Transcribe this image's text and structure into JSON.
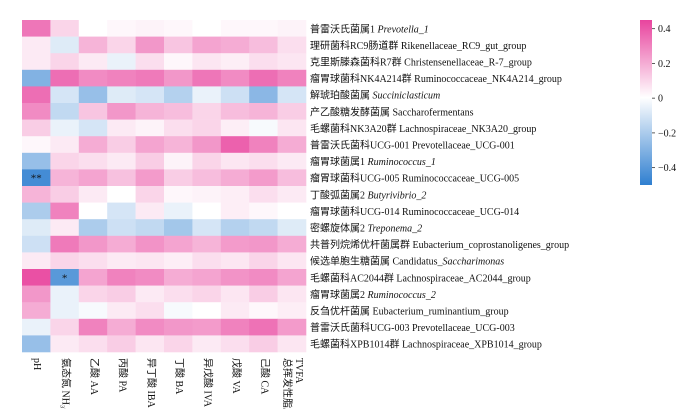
{
  "chart_data": {
    "type": "heatmap",
    "title": "",
    "rows": [
      {
        "zh": "普雷沃氏菌属1 ",
        "en": "Prevotella_1",
        "italic": true
      },
      {
        "zh": "理研菌科RC9肠道群 ",
        "en": "Rikenellaceae_RC9_gut_group",
        "italic": false
      },
      {
        "zh": "克里斯滕森菌科R7群 ",
        "en": "Christensenellaceae_R-7_group",
        "italic": false
      },
      {
        "zh": "瘤胃球菌科NK4A214群 ",
        "en": "Ruminococcaceae_NK4A214_group",
        "italic": false
      },
      {
        "zh": "解琥珀酸菌属 ",
        "en": "Succiniclasticum",
        "italic": true
      },
      {
        "zh": "产乙酸糖发酵菌属 ",
        "en": "Saccharofermentans",
        "italic": false
      },
      {
        "zh": "毛螺菌科NK3A20群 ",
        "en": "Lachnospiraceae_NK3A20_group",
        "italic": false
      },
      {
        "zh": "普雷沃氏菌科UCG-001 ",
        "en": "Prevotellaceae_UCG-001",
        "italic": false
      },
      {
        "zh": "瘤胃球菌属1 ",
        "en": "Ruminococcus_1",
        "italic": true
      },
      {
        "zh": "瘤胃球菌科UCG-005 ",
        "en": "Ruminococcaceae_UCG-005",
        "italic": false
      },
      {
        "zh": "丁酸弧菌属2 ",
        "en": "Butyrivibrio_2",
        "italic": true
      },
      {
        "zh": "瘤胃球菌科UCG-014 ",
        "en": "Ruminococcaceae_UCG-014",
        "italic": false
      },
      {
        "zh": "密螺旋体属2 ",
        "en": "Treponema_2",
        "italic": true
      },
      {
        "zh": "共普列烷烯优杆菌属群 ",
        "en": "Eubacterium_coprostanoligenes_group",
        "italic": false
      },
      {
        "zh": "候选单胞生糖菌属 ",
        "en": "Candidatus_Saccharimonas",
        "italic": false,
        "italic_tail": "Saccharimonas",
        "head": "Candidatus_"
      },
      {
        "zh": "毛螺菌科AC2044群 ",
        "en": "Lachnospiraceae_AC2044_group",
        "italic": false
      },
      {
        "zh": "瘤胃球菌属2 ",
        "en": "Ruminococcus_2",
        "italic": true
      },
      {
        "zh": "反刍优杆菌属 ",
        "en": "Eubacterium_ruminantium_group",
        "italic": false
      },
      {
        "zh": "普雷沃氏菌科UCG-003 ",
        "en": "Prevotellaceae_UCG-003",
        "italic": false
      },
      {
        "zh": "毛螺菌科XPB1014群 ",
        "en": "Lachnospiraceae_XPB1014_group",
        "italic": false
      }
    ],
    "columns": [
      {
        "lines": [
          "pH"
        ]
      },
      {
        "lines": [
          "氨态氮 NH₃-N"
        ]
      },
      {
        "lines": [
          "乙酸 AA"
        ]
      },
      {
        "lines": [
          "丙酸 PA"
        ]
      },
      {
        "lines": [
          "异丁酸 IBA"
        ]
      },
      {
        "lines": [
          "丁酸 BA"
        ]
      },
      {
        "lines": [
          "异戊酸 IVA"
        ]
      },
      {
        "lines": [
          "戊酸 VA"
        ]
      },
      {
        "lines": [
          "己酸 CA"
        ]
      },
      {
        "lines": [
          "总挥发性脂肪酸",
          "TVFA"
        ]
      }
    ],
    "values": [
      [
        0.33,
        0.1,
        0.0,
        0.02,
        0.03,
        0.02,
        0.0,
        0.02,
        0.02,
        0.03
      ],
      [
        0.05,
        -0.08,
        0.18,
        0.1,
        0.25,
        0.14,
        0.22,
        0.2,
        0.16,
        0.08
      ],
      [
        0.05,
        0.1,
        0.05,
        -0.05,
        0.08,
        0.02,
        0.06,
        0.04,
        0.08,
        0.06
      ],
      [
        -0.3,
        0.35,
        0.28,
        0.3,
        0.32,
        0.25,
        0.33,
        0.28,
        0.35,
        0.3
      ],
      [
        0.35,
        -0.1,
        -0.25,
        -0.08,
        -0.1,
        -0.18,
        -0.05,
        -0.12,
        -0.28,
        -0.1
      ],
      [
        0.28,
        -0.15,
        0.14,
        0.25,
        0.18,
        0.16,
        0.1,
        0.16,
        0.18,
        0.12
      ],
      [
        0.12,
        -0.05,
        -0.1,
        0.05,
        0.03,
        0.08,
        0.1,
        0.04,
        -0.02,
        0.06
      ],
      [
        0.02,
        0.05,
        0.2,
        0.12,
        0.22,
        0.18,
        0.25,
        0.38,
        0.3,
        0.2
      ],
      [
        -0.25,
        0.1,
        0.08,
        0.05,
        0.12,
        0.03,
        0.1,
        0.06,
        0.08,
        0.05
      ],
      [
        -0.45,
        0.18,
        0.22,
        0.15,
        0.24,
        0.12,
        0.16,
        0.2,
        0.24,
        0.16
      ],
      [
        0.18,
        0.12,
        0.05,
        0.0,
        0.1,
        0.02,
        0.03,
        0.04,
        0.08,
        0.05
      ],
      [
        -0.2,
        0.3,
        0.0,
        -0.1,
        0.05,
        -0.05,
        0.0,
        0.04,
        0.02,
        0.0
      ],
      [
        -0.08,
        0.05,
        -0.2,
        -0.12,
        -0.15,
        -0.22,
        -0.1,
        -0.18,
        -0.15,
        -0.08
      ],
      [
        -0.12,
        0.32,
        0.25,
        0.2,
        0.26,
        0.22,
        0.18,
        0.24,
        0.25,
        0.2
      ],
      [
        0.05,
        0.1,
        0.08,
        0.05,
        0.06,
        0.04,
        0.08,
        0.06,
        0.1,
        0.06
      ],
      [
        0.42,
        -0.4,
        0.22,
        0.3,
        0.28,
        0.2,
        0.22,
        0.26,
        0.28,
        0.22
      ],
      [
        0.25,
        -0.05,
        0.1,
        0.12,
        0.05,
        0.08,
        0.1,
        0.06,
        0.12,
        0.06
      ],
      [
        0.2,
        -0.05,
        -0.02,
        0.05,
        0.08,
        -0.02,
        0.0,
        0.05,
        0.02,
        0.04
      ],
      [
        -0.05,
        0.1,
        0.3,
        0.2,
        0.28,
        0.25,
        0.24,
        0.3,
        0.34,
        0.24
      ],
      [
        -0.25,
        0.05,
        0.08,
        0.12,
        0.06,
        0.1,
        0.05,
        0.08,
        0.12,
        0.06
      ]
    ],
    "significance": [
      {
        "row": 9,
        "col": 0,
        "mark": "**"
      },
      {
        "row": 15,
        "col": 1,
        "mark": "*"
      }
    ],
    "colorbar": {
      "min": -0.5,
      "max": 0.45,
      "ticks": [
        0.4,
        0.2,
        0,
        -0.2,
        -0.4
      ],
      "tick_labels": [
        "0.4",
        "0.2",
        "0",
        "−0.2",
        "−0.4"
      ],
      "colors": {
        "neg": "#2f7fd0",
        "mid": "#ffffff",
        "pos": "#e8449e"
      }
    }
  }
}
